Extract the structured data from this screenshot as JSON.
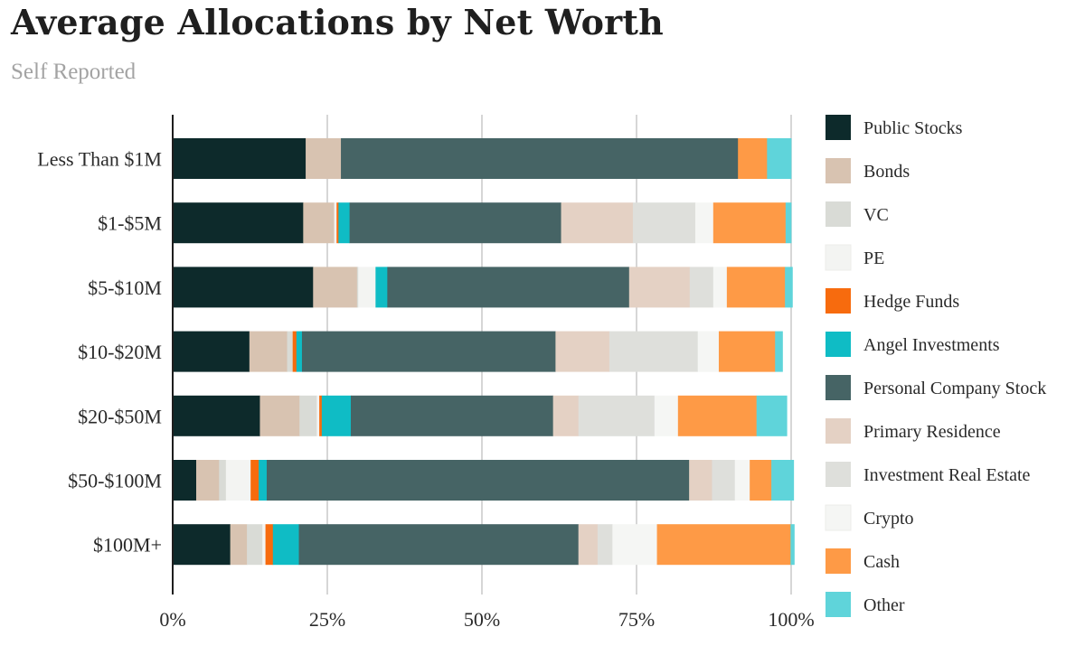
{
  "chart_data": {
    "type": "bar",
    "orientation": "horizontal",
    "stacked": true,
    "title": "Average Allocations by Net Worth",
    "subtitle": "Self Reported",
    "xlim": [
      0,
      100
    ],
    "x_ticks": [
      {
        "value": 0,
        "label": "0%"
      },
      {
        "value": 25,
        "label": "25%"
      },
      {
        "value": 50,
        "label": "50%"
      },
      {
        "value": 75,
        "label": "75%"
      },
      {
        "value": 100,
        "label": "100%"
      }
    ],
    "grid": true,
    "legend_position": "right",
    "categories": [
      "Less Than $1M",
      "$1-$5M",
      "$5-$10M",
      "$10-$20M",
      "$20-$50M",
      "$50-$100M",
      "$100M+"
    ],
    "series": [
      {
        "name": "Public Stocks",
        "color": "#0d2a2b",
        "values": [
          21.5,
          21.1,
          22.7,
          12.4,
          14.1,
          3.8,
          9.3
        ]
      },
      {
        "name": "Bonds",
        "color": "#d8c3b1",
        "values": [
          5.7,
          5.0,
          7.1,
          6.1,
          6.4,
          3.7,
          2.7
        ]
      },
      {
        "name": "VC",
        "color": "#d9dbd6",
        "values": [
          0,
          0,
          0.2,
          0.9,
          2.8,
          1.1,
          2.5
        ]
      },
      {
        "name": "PE",
        "color": "#f3f4f2",
        "values": [
          0,
          0.4,
          2.8,
          0,
          0.4,
          4.0,
          0.5
        ]
      },
      {
        "name": "Hedge Funds",
        "color": "#f76b0e",
        "values": [
          0,
          0.3,
          0,
          0.6,
          0.4,
          1.3,
          1.2
        ]
      },
      {
        "name": "Angel Investments",
        "color": "#0fbcc5",
        "values": [
          0,
          1.8,
          1.9,
          0.9,
          4.7,
          1.3,
          4.2
        ]
      },
      {
        "name": "Personal Company Stock",
        "color": "#466465",
        "values": [
          64.2,
          34.2,
          39.1,
          41.0,
          32.7,
          68.3,
          45.2
        ]
      },
      {
        "name": "Primary Residence",
        "color": "#e4d1c4",
        "values": [
          0,
          11.6,
          9.8,
          8.7,
          4.1,
          3.7,
          3.1
        ]
      },
      {
        "name": "Investment Real Estate",
        "color": "#dedfdb",
        "values": [
          0,
          10.1,
          3.8,
          14.3,
          12.3,
          3.7,
          2.4
        ]
      },
      {
        "name": "Crypto",
        "color": "#f5f6f4",
        "values": [
          0,
          2.9,
          2.2,
          3.4,
          3.8,
          2.4,
          7.2
        ]
      },
      {
        "name": "Cash",
        "color": "#fe9a46",
        "values": [
          4.7,
          11.7,
          9.4,
          9.1,
          12.7,
          3.5,
          21.6
        ]
      },
      {
        "name": "Other",
        "color": "#5fd4da",
        "values": [
          3.9,
          0.9,
          1.2,
          1.2,
          4.9,
          3.6,
          0.6
        ]
      }
    ]
  }
}
